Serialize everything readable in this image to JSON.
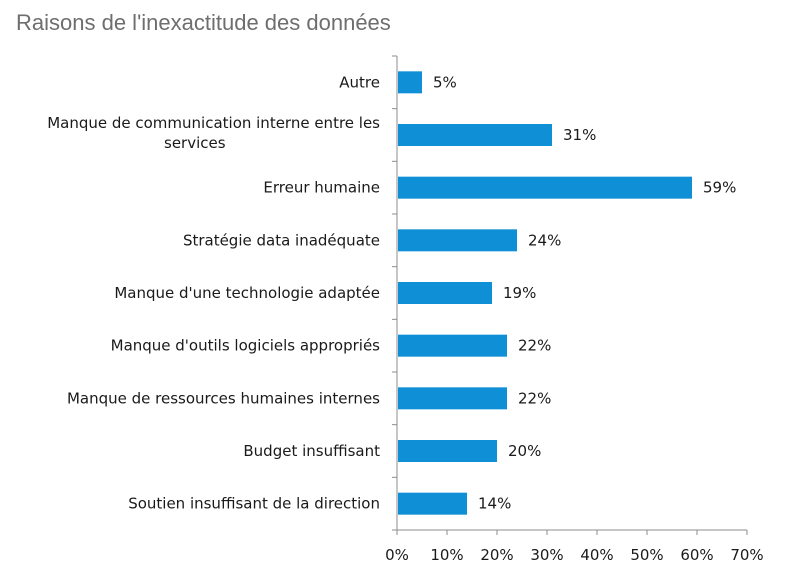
{
  "chart_data": {
    "type": "bar",
    "orientation": "horizontal",
    "title": "Raisons de l'inexactitude des données",
    "categories": [
      [
        "Autre"
      ],
      [
        "Manque de communication interne entre les",
        "services"
      ],
      [
        "Erreur humaine"
      ],
      [
        "Stratégie data inadéquate"
      ],
      [
        "Manque d'une technologie adaptée"
      ],
      [
        "Manque d'outils logiciels appropriés"
      ],
      [
        "Manque de ressources humaines internes"
      ],
      [
        "Budget insuffisant"
      ],
      [
        "Soutien insuffisant de la direction"
      ]
    ],
    "values": [
      5,
      31,
      59,
      24,
      19,
      22,
      22,
      20,
      14
    ],
    "value_labels": [
      "5%",
      "31%",
      "59%",
      "24%",
      "19%",
      "22%",
      "22%",
      "20%",
      "14%"
    ],
    "x_ticks": [
      "0%",
      "10%",
      "20%",
      "30%",
      "40%",
      "50%",
      "60%",
      "70%"
    ],
    "xlim": [
      0,
      70
    ],
    "bar_color": "#0f8fd6",
    "axis_color": "#8c8c8c",
    "grid": false,
    "legend": "none"
  }
}
